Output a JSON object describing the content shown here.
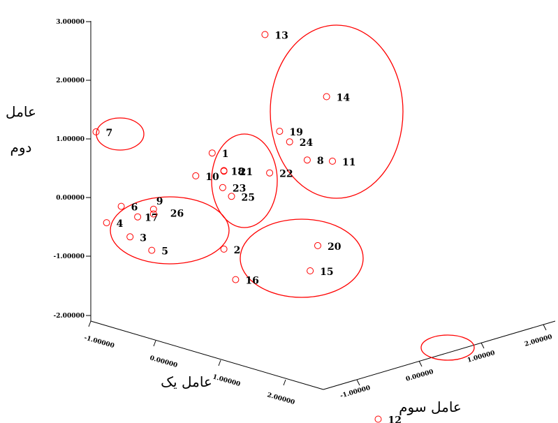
{
  "chart_data": {
    "type": "scatter",
    "title": "",
    "axes": {
      "x": {
        "label": "عامل یک",
        "ticks": [
          "-1.00000",
          "0.00000",
          "1.00000",
          "2.00000"
        ],
        "range": [
          -1,
          2
        ]
      },
      "y": {
        "label_lines": [
          "عامل",
          "دوم"
        ],
        "ticks": [
          "3.00000",
          "2.00000",
          "1.00000",
          "0.00000",
          "-1.00000",
          "-2.00000"
        ],
        "range": [
          -2,
          3
        ]
      },
      "z": {
        "label": "عامل سوم",
        "ticks": [
          "-1.00000",
          "0.00000",
          "1.00000",
          "2.00000"
        ],
        "range": [
          -1,
          2
        ]
      }
    },
    "points": [
      {
        "label": "1",
        "screen_value": [
          -0.05,
          0.76
        ]
      },
      {
        "label": "2",
        "screen_value": [
          0.15,
          -0.88
        ]
      },
      {
        "label": "3",
        "screen_value": [
          -1.45,
          -0.67
        ]
      },
      {
        "label": "4",
        "screen_value": [
          -1.85,
          -0.43
        ]
      },
      {
        "label": "5",
        "screen_value": [
          -1.08,
          -0.9
        ]
      },
      {
        "label": "6",
        "screen_value": [
          -1.6,
          -0.15
        ]
      },
      {
        "label": "7",
        "screen_value": [
          -2.03,
          1.12
        ]
      },
      {
        "label": "8",
        "screen_value": [
          1.57,
          0.64
        ]
      },
      {
        "label": "9",
        "screen_value": [
          -1.05,
          -0.2
        ]
      },
      {
        "label": "10",
        "screen_value": [
          -0.33,
          0.37
        ]
      },
      {
        "label": "11",
        "screen_value": [
          2.0,
          0.62
        ]
      },
      {
        "label": "12",
        "screen_value": [
          2.78,
          -3.78
        ]
      },
      {
        "label": "13",
        "screen_value": [
          0.85,
          2.78
        ]
      },
      {
        "label": "14",
        "screen_value": [
          1.9,
          1.72
        ]
      },
      {
        "label": "15",
        "screen_value": [
          1.62,
          -1.25
        ]
      },
      {
        "label": "16",
        "screen_value": [
          0.35,
          -1.4
        ]
      },
      {
        "label": "17",
        "screen_value": [
          -1.32,
          -0.33
        ]
      },
      {
        "label": "18",
        "screen_value": [
          0.15,
          0.46
        ]
      },
      {
        "label": "19",
        "screen_value": [
          1.1,
          1.13
        ]
      },
      {
        "label": "20",
        "screen_value": [
          1.75,
          -0.82
        ]
      },
      {
        "label": "21",
        "screen_value": [
          0.15,
          0.45
        ]
      },
      {
        "label": "22",
        "screen_value": [
          0.93,
          0.42
        ]
      },
      {
        "label": "23",
        "screen_value": [
          0.13,
          0.17
        ]
      },
      {
        "label": "24",
        "screen_value": [
          1.27,
          0.95
        ]
      },
      {
        "label": "25",
        "screen_value": [
          0.28,
          0.02
        ]
      },
      {
        "label": "26",
        "screen_value": [
          -1.05,
          -0.28
        ]
      }
    ],
    "clusters": [
      {
        "members": [
          "7"
        ]
      },
      {
        "members": [
          "3",
          "4",
          "5",
          "6",
          "9",
          "17",
          "26"
        ]
      },
      {
        "members": [
          "1",
          "10",
          "18",
          "21",
          "23",
          "25"
        ]
      },
      {
        "members": [
          "2",
          "15",
          "16",
          "20"
        ]
      },
      {
        "members": [
          "8",
          "11",
          "13",
          "14",
          "19",
          "22",
          "24"
        ]
      },
      {
        "members": [
          "12"
        ]
      }
    ],
    "colors": {
      "points": "#ff0000",
      "clusters": "#ff0000",
      "axes": "#000000"
    },
    "legend": "none",
    "grid": false
  }
}
